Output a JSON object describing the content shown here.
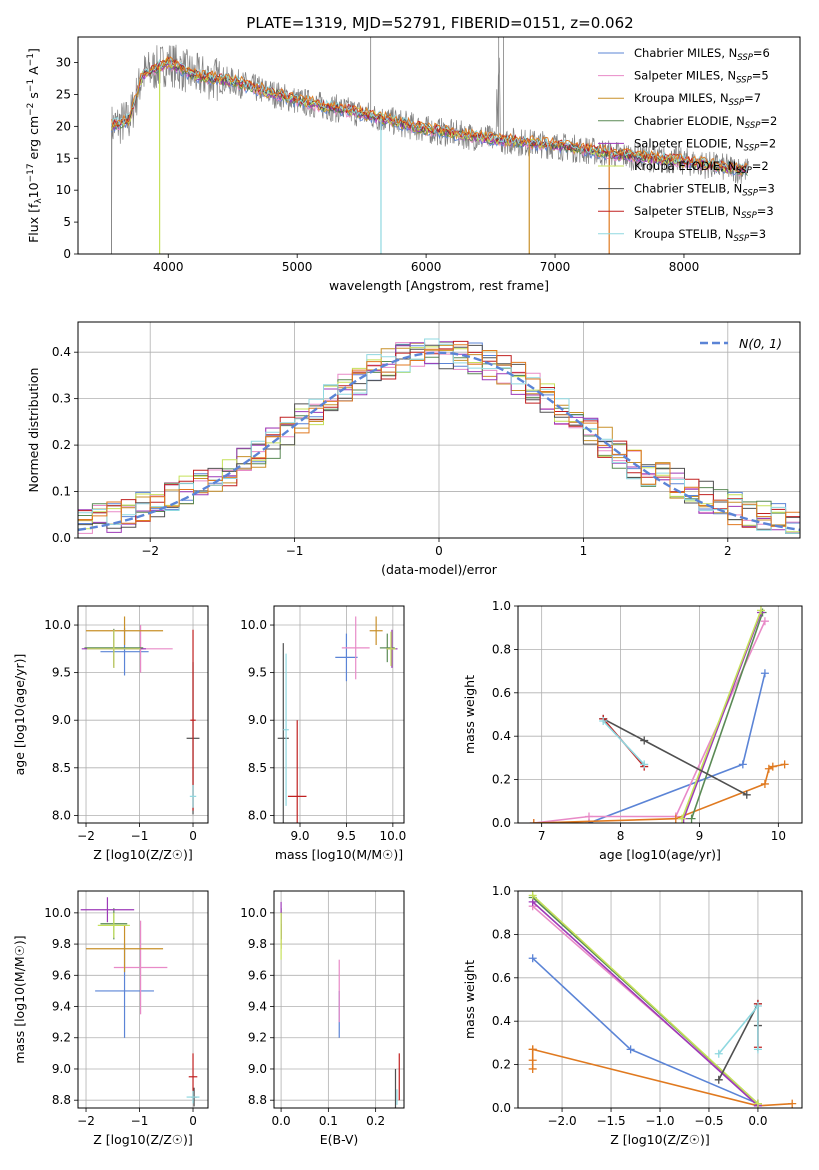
{
  "figure": {
    "title": "PLATE=1319, MJD=52791, FIBERID=0151, z=0.062"
  },
  "colors": {
    "Chabrier MILES": "#5b84d6",
    "Salpeter MILES": "#e88ac7",
    "Kroupa MILES": "#c8902a",
    "Chabrier ELODIE": "#5a8a55",
    "Salpeter ELODIE": "#9d3ab8",
    "Kroupa ELODIE": "#c5e15a",
    "Chabrier STELIB": "#505050",
    "Salpeter STELIB": "#c02020",
    "Kroupa STELIB": "#8fd8e0",
    "data": "#808080",
    "orange": "#e07a20",
    "normal": "#5b84d6"
  },
  "chart_data": [
    {
      "id": "spectrum",
      "type": "line",
      "title": "PLATE=1319, MJD=52791, FIBERID=0151, z=0.062",
      "xlabel": "wavelength [Angstrom, rest frame]",
      "ylabel": "Flux [f_λ 10^-17 erg cm^-2 s^-1 A^-1]",
      "xlim": [
        3300,
        8900
      ],
      "ylim": [
        0,
        34
      ],
      "xticks": [
        "4000",
        "5000",
        "6000",
        "7000",
        "8000"
      ],
      "yticks": [
        "0",
        "5",
        "10",
        "15",
        "20",
        "25",
        "30"
      ],
      "legend": "top-right",
      "series": [
        {
          "name": "Chabrier MILES",
          "nssp": "6"
        },
        {
          "name": "Salpeter MILES",
          "nssp": "5"
        },
        {
          "name": "Kroupa MILES",
          "nssp": "7"
        },
        {
          "name": "Chabrier ELODIE",
          "nssp": "2"
        },
        {
          "name": "Salpeter ELODIE",
          "nssp": "2"
        },
        {
          "name": "Kroupa ELODIE",
          "nssp": "2"
        },
        {
          "name": "Chabrier STELIB",
          "nssp": "3"
        },
        {
          "name": "Salpeter STELIB",
          "nssp": "3"
        },
        {
          "name": "Kroupa STELIB",
          "nssp": "3"
        }
      ],
      "continuum": [
        [
          3560,
          20
        ],
        [
          3700,
          21
        ],
        [
          3800,
          28
        ],
        [
          3900,
          29
        ],
        [
          4000,
          30
        ],
        [
          4200,
          28
        ],
        [
          4500,
          27
        ],
        [
          5000,
          24
        ],
        [
          5500,
          22
        ],
        [
          6000,
          19.5
        ],
        [
          6500,
          18
        ],
        [
          7000,
          17
        ],
        [
          7500,
          15.5
        ],
        [
          8000,
          14.5
        ],
        [
          8500,
          13
        ]
      ]
    },
    {
      "id": "residuals",
      "type": "line",
      "xlabel": "(data-model)/error",
      "ylabel": "Normed distribution",
      "xlim": [
        -2.5,
        2.5
      ],
      "ylim": [
        0,
        0.465
      ],
      "xticks": [
        "−2",
        "−1",
        "0",
        "1",
        "2"
      ],
      "yticks": [
        "0.0",
        "0.1",
        "0.2",
        "0.3",
        "0.4"
      ],
      "legend": "top-right",
      "legend_label": "N(0, 1)",
      "bin_width": 0.1
    },
    {
      "id": "age-vs-Z",
      "type": "scatter",
      "xlabel": "Z [log10(Z/Z☉)]",
      "ylabel": "age  [log10(age/yr)]",
      "xlim": [
        -2.15,
        0.28
      ],
      "ylim": [
        7.92,
        10.2
      ],
      "xticks": [
        "−2",
        "−1",
        "0"
      ],
      "yticks": [
        "8.0",
        "8.5",
        "9.0",
        "9.5",
        "10.0"
      ]
    },
    {
      "id": "age-vs-mass",
      "type": "scatter",
      "xlabel": "mass [log10(M/M☉)]",
      "ylabel": "",
      "xlim": [
        8.72,
        10.12
      ],
      "ylim": [
        7.92,
        10.2
      ],
      "xticks": [
        "9.0",
        "9.5",
        "10.0"
      ],
      "yticks": [
        "8.0",
        "8.5",
        "9.0",
        "9.5",
        "10.0"
      ]
    },
    {
      "id": "massweight-vs-age",
      "type": "line",
      "xlabel": "age  [log10(age/yr)]",
      "ylabel": "mass weight",
      "xlim": [
        6.7,
        10.3
      ],
      "ylim": [
        0,
        1.0
      ],
      "xticks": [
        "7",
        "8",
        "9",
        "10"
      ],
      "yticks": [
        "0.0",
        "0.2",
        "0.4",
        "0.6",
        "0.8",
        "1.0"
      ]
    },
    {
      "id": "mass-vs-Z",
      "type": "scatter",
      "xlabel": "Z [log10(Z/Z☉)]",
      "ylabel": "mass [log10(M/M☉)]",
      "xlim": [
        -2.15,
        0.28
      ],
      "ylim": [
        8.75,
        10.14
      ],
      "xticks": [
        "−2",
        "−1",
        "0"
      ],
      "yticks": [
        "8.8",
        "9.0",
        "9.2",
        "9.4",
        "9.6",
        "9.8",
        "10.0"
      ]
    },
    {
      "id": "mass-vs-ebv",
      "type": "scatter",
      "xlabel": "E(B-V)",
      "ylabel": "",
      "xlim": [
        -0.015,
        0.26
      ],
      "ylim": [
        8.75,
        10.14
      ],
      "xticks": [
        "0.0",
        "0.1",
        "0.2"
      ],
      "yticks": [
        "8.8",
        "9.0",
        "9.2",
        "9.4",
        "9.6",
        "9.8",
        "10.0"
      ]
    },
    {
      "id": "massweight-vs-Z",
      "type": "line",
      "xlabel": "Z [log10(Z/Z☉)]",
      "ylabel": "mass weight",
      "xlim": [
        -2.45,
        0.45
      ],
      "ylim": [
        0,
        1.0
      ],
      "xticks": [
        "−2.0",
        "−1.5",
        "−1.0",
        "−0.5",
        "0.0"
      ],
      "yticks": [
        "0.0",
        "0.2",
        "0.4",
        "0.6",
        "0.8",
        "1.0"
      ]
    }
  ],
  "scatter_points": {
    "age_Z": [
      {
        "c": "Chabrier MILES",
        "x": -1.28,
        "y": 9.72,
        "ex": 0.45,
        "ey": 0.25
      },
      {
        "c": "Salpeter MILES",
        "x": -0.98,
        "y": 9.75,
        "ex": 0.6,
        "ey": 0.25
      },
      {
        "c": "Kroupa MILES",
        "x": -1.28,
        "y": 9.94,
        "ex": 0.72,
        "ey": 0.15
      },
      {
        "c": "Chabrier ELODIE",
        "x": -1.48,
        "y": 9.76,
        "ex": 0.55,
        "ey": 0.2
      },
      {
        "c": "Salpeter ELODIE",
        "x": -1.48,
        "y": 9.75,
        "ex": 0.6,
        "ey": 0.2
      },
      {
        "c": "Kroupa ELODIE",
        "x": -1.48,
        "y": 9.75,
        "ex": 0.5,
        "ey": 0.2
      },
      {
        "c": "Chabrier STELIB",
        "x": 0.0,
        "y": 8.81,
        "ex": 0.12,
        "ey": 0.8
      },
      {
        "c": "Salpeter STELIB",
        "x": 0.0,
        "y": 9.0,
        "ex": 0.05,
        "ey": 0.95
      },
      {
        "c": "Kroupa STELIB",
        "x": 0.0,
        "y": 8.2,
        "ex": 0.06,
        "ey": 0.12
      }
    ],
    "age_mass": [
      {
        "c": "Chabrier MILES",
        "x": 9.5,
        "y": 9.66,
        "ex": 0.12,
        "ey": 0.25
      },
      {
        "c": "Salpeter MILES",
        "x": 9.6,
        "y": 9.76,
        "ex": 0.15,
        "ey": 0.33
      },
      {
        "c": "Kroupa MILES",
        "x": 9.82,
        "y": 9.94,
        "ex": 0.07,
        "ey": 0.15
      },
      {
        "c": "Chabrier ELODIE",
        "x": 9.94,
        "y": 9.76,
        "ex": 0.08,
        "ey": 0.15
      },
      {
        "c": "Salpeter ELODIE",
        "x": 9.99,
        "y": 9.75,
        "ex": 0.06,
        "ey": 0.2
      },
      {
        "c": "Kroupa ELODIE",
        "x": 9.98,
        "y": 9.75,
        "ex": 0.05,
        "ey": 0.18
      },
      {
        "c": "Chabrier STELIB",
        "x": 8.82,
        "y": 8.81,
        "ex": 0.06,
        "ey": 1.0
      },
      {
        "c": "Salpeter STELIB",
        "x": 8.97,
        "y": 8.2,
        "ex": 0.1,
        "ey": 0.8
      },
      {
        "c": "Kroupa STELIB",
        "x": 8.85,
        "y": 8.9,
        "ex": 0.03,
        "ey": 0.8
      }
    ],
    "mass_Z": [
      {
        "c": "Chabrier MILES",
        "x": -1.28,
        "y": 9.5,
        "ex": 0.55,
        "ey": 0.3
      },
      {
        "c": "Salpeter MILES",
        "x": -0.98,
        "y": 9.65,
        "ex": 0.5,
        "ey": 0.3
      },
      {
        "c": "Kroupa MILES",
        "x": -1.28,
        "y": 9.77,
        "ex": 0.72,
        "ey": 0.15
      },
      {
        "c": "Chabrier ELODIE",
        "x": -1.48,
        "y": 9.93,
        "ex": 0.25,
        "ey": 0.1
      },
      {
        "c": "Salpeter ELODIE",
        "x": -1.6,
        "y": 10.02,
        "ex": 0.5,
        "ey": 0.08
      },
      {
        "c": "Kroupa ELODIE",
        "x": -1.48,
        "y": 9.92,
        "ex": 0.3,
        "ey": 0.08
      },
      {
        "c": "Chabrier STELIB",
        "x": 0.02,
        "y": 8.82,
        "ex": 0.05,
        "ey": 0.06
      },
      {
        "c": "Salpeter STELIB",
        "x": 0.0,
        "y": 8.95,
        "ex": 0.08,
        "ey": 0.15
      },
      {
        "c": "Kroupa STELIB",
        "x": 0.0,
        "y": 8.82,
        "ex": 0.12,
        "ey": 0.04
      }
    ],
    "mass_ebv": [
      {
        "c": "Chabrier MILES",
        "x": 0.123,
        "y": 9.35,
        "ex": 0.0,
        "ey": 0.15
      },
      {
        "c": "Salpeter MILES",
        "x": 0.123,
        "y": 9.5,
        "ex": 0.0,
        "ey": 0.2
      },
      {
        "c": "Kroupa MILES",
        "x": 0.0,
        "y": 9.85,
        "ex": 0.0,
        "ey": 0.08
      },
      {
        "c": "Chabrier ELODIE",
        "x": 0.0,
        "y": 9.93,
        "ex": 0.0,
        "ey": 0.1
      },
      {
        "c": "Salpeter ELODIE",
        "x": 0.0,
        "y": 9.95,
        "ex": 0.0,
        "ey": 0.12
      },
      {
        "c": "Kroupa ELODIE",
        "x": 0.0,
        "y": 9.85,
        "ex": 0.0,
        "ey": 0.15
      },
      {
        "c": "Chabrier STELIB",
        "x": 0.242,
        "y": 8.85,
        "ex": 0.0,
        "ey": 0.15
      },
      {
        "c": "Salpeter STELIB",
        "x": 0.25,
        "y": 8.95,
        "ex": 0.0,
        "ey": 0.15
      },
      {
        "c": "Kroupa STELIB",
        "x": 0.245,
        "y": 8.82,
        "ex": 0.0,
        "ey": 0.05
      }
    ]
  },
  "weight_lines": {
    "age": [
      {
        "c": "Chabrier MILES",
        "pts": [
          [
            7.6,
            0.0
          ],
          [
            9.55,
            0.27
          ],
          [
            9.83,
            0.69
          ]
        ]
      },
      {
        "c": "Salpeter MILES",
        "pts": [
          [
            6.9,
            0.0
          ],
          [
            7.6,
            0.03
          ],
          [
            8.7,
            0.03
          ],
          [
            9.83,
            0.93
          ]
        ]
      },
      {
        "c": "orange",
        "pts": [
          [
            6.9,
            0.0
          ],
          [
            8.7,
            0.02
          ],
          [
            9.83,
            0.18
          ],
          [
            9.88,
            0.25
          ],
          [
            9.93,
            0.26
          ],
          [
            10.08,
            0.27
          ]
        ]
      },
      {
        "c": "Chabrier ELODIE",
        "pts": [
          [
            8.9,
            0.02
          ],
          [
            9.8,
            0.97
          ]
        ]
      },
      {
        "c": "Salpeter ELODIE",
        "pts": [
          [
            8.8,
            0.02
          ],
          [
            9.78,
            0.97
          ]
        ]
      },
      {
        "c": "Kroupa ELODIE",
        "pts": [
          [
            8.78,
            0.02
          ],
          [
            9.78,
            0.98
          ]
        ]
      },
      {
        "c": "Chabrier STELIB",
        "pts": [
          [
            7.78,
            0.48
          ],
          [
            8.3,
            0.38
          ],
          [
            9.6,
            0.13
          ]
        ]
      },
      {
        "c": "Salpeter STELIB",
        "pts": [
          [
            7.78,
            0.48
          ],
          [
            8.3,
            0.26
          ]
        ]
      },
      {
        "c": "Kroupa STELIB",
        "pts": [
          [
            7.78,
            0.47
          ],
          [
            8.3,
            0.27
          ]
        ]
      }
    ],
    "Z": [
      {
        "c": "Chabrier MILES",
        "pts": [
          [
            -2.3,
            0.69
          ],
          [
            -1.3,
            0.27
          ],
          [
            0.0,
            0.02
          ]
        ]
      },
      {
        "c": "Salpeter MILES",
        "pts": [
          [
            -2.3,
            0.93
          ],
          [
            0.0,
            0.02
          ]
        ]
      },
      {
        "c": "orange",
        "pts": [
          [
            -2.3,
            0.27
          ],
          [
            -2.3,
            0.22
          ],
          [
            -2.3,
            0.18
          ],
          [
            -2.3,
            0.27
          ],
          [
            0.0,
            0.01
          ],
          [
            0.35,
            0.02
          ]
        ]
      },
      {
        "c": "Chabrier ELODIE",
        "pts": [
          [
            -2.3,
            0.97
          ],
          [
            0.0,
            0.02
          ]
        ]
      },
      {
        "c": "Salpeter ELODIE",
        "pts": [
          [
            -2.3,
            0.95
          ],
          [
            0.0,
            0.01
          ]
        ]
      },
      {
        "c": "Kroupa ELODIE",
        "pts": [
          [
            -2.3,
            0.98
          ],
          [
            0.0,
            0.02
          ]
        ]
      },
      {
        "c": "Chabrier STELIB",
        "pts": [
          [
            -0.4,
            0.13
          ],
          [
            0.0,
            0.48
          ],
          [
            0.0,
            0.38
          ]
        ]
      },
      {
        "c": "Salpeter STELIB",
        "pts": [
          [
            0.0,
            0.48
          ],
          [
            0.0,
            0.28
          ]
        ]
      },
      {
        "c": "Kroupa STELIB",
        "pts": [
          [
            -0.4,
            0.25
          ],
          [
            0.0,
            0.47
          ],
          [
            0.0,
            0.27
          ]
        ]
      }
    ]
  }
}
